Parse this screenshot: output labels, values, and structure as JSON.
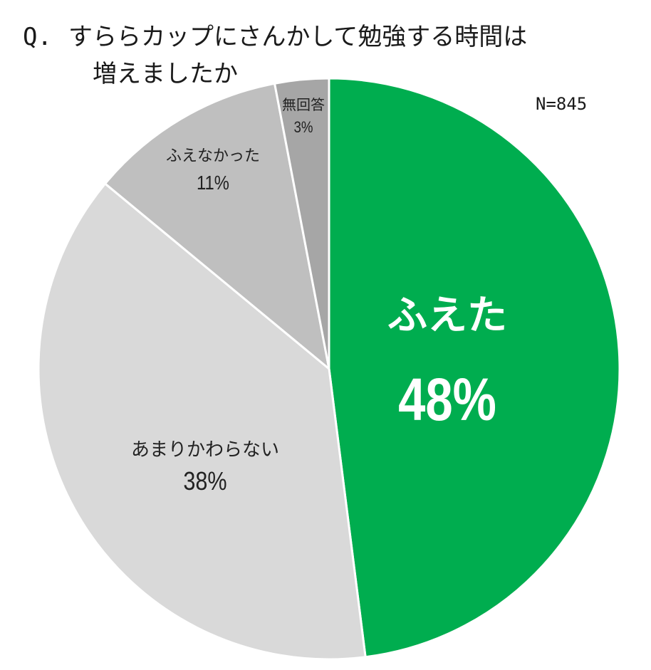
{
  "title": {
    "prefix": "Q.",
    "line1": "すららカップにさんかして勉強する時間は",
    "line2": "増えましたか"
  },
  "sample_size": "N=845",
  "chart_data": {
    "type": "pie",
    "title": "Q. すららカップにさんかして勉強する時間は増えましたか",
    "note": "N=845",
    "unit": "%",
    "slices": [
      {
        "label": "ふえた",
        "value": 48,
        "display": "48%",
        "color": "#00ad4f",
        "text_color": "#ffffff"
      },
      {
        "label": "あまりかわらない",
        "value": 38,
        "display": "38%",
        "color": "#d9d9d9",
        "text_color": "#222222"
      },
      {
        "label": "ふえなかった",
        "value": 11,
        "display": "11%",
        "color": "#bfbfbf",
        "text_color": "#222222"
      },
      {
        "label": "無回答",
        "value": 3,
        "display": "3%",
        "color": "#a6a6a6",
        "text_color": "#222222"
      }
    ],
    "start": "top",
    "direction": "clockwise",
    "legend": "none"
  }
}
